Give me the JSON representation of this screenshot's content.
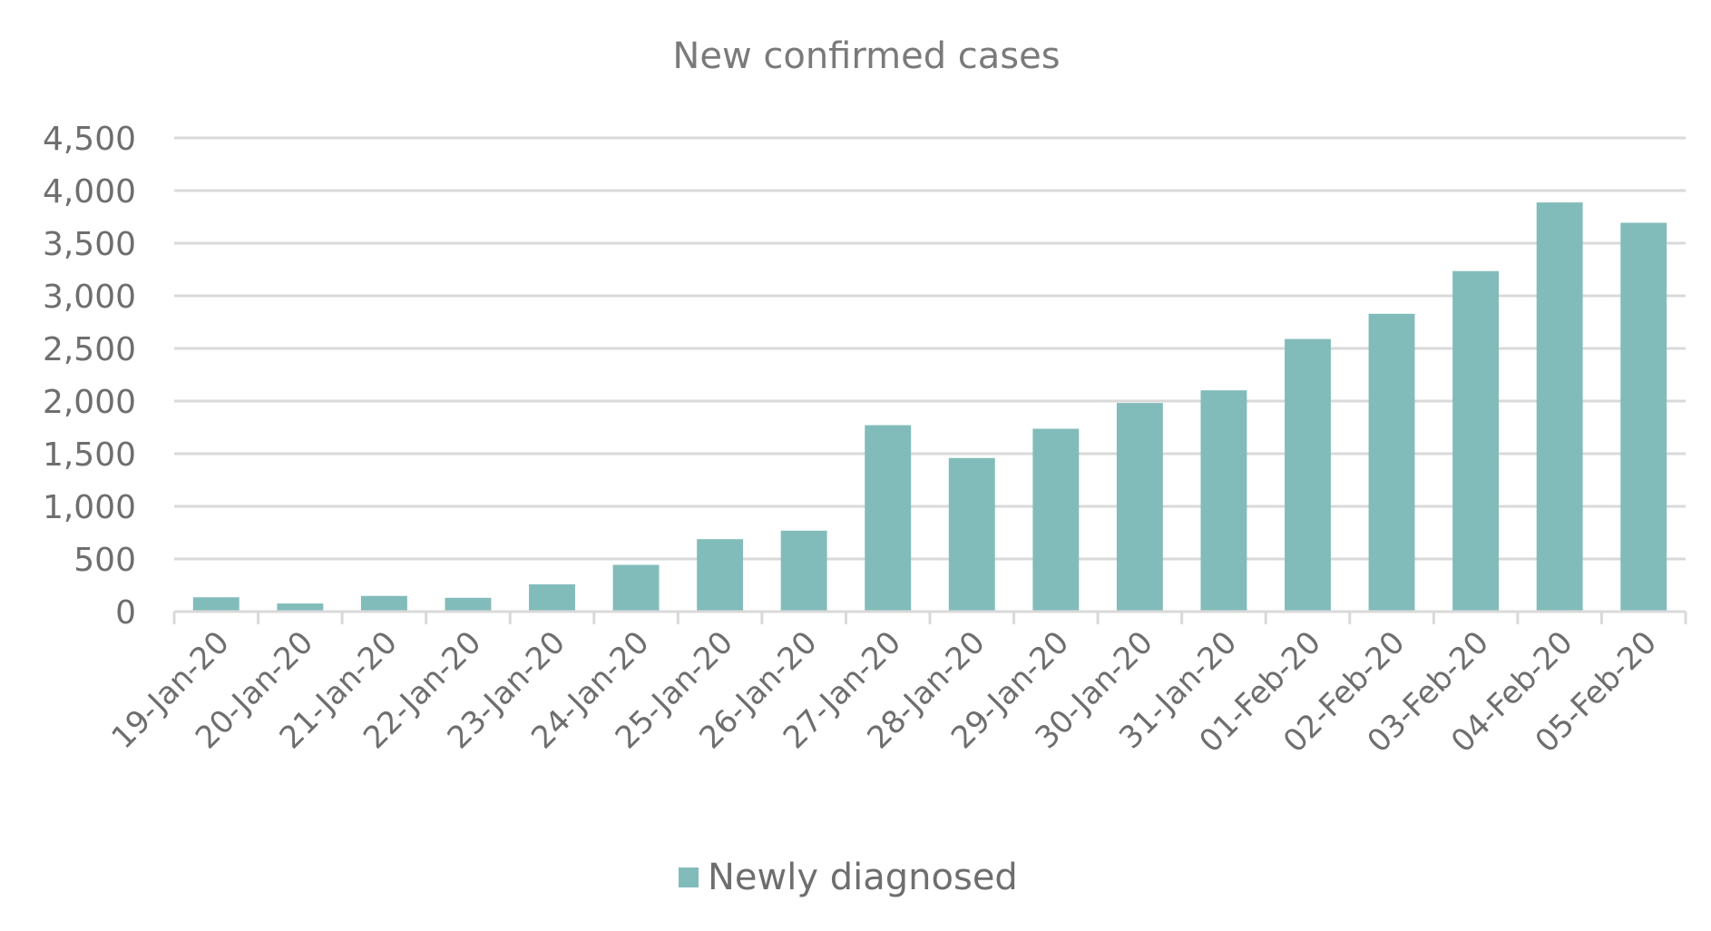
{
  "chart_data": {
    "type": "bar",
    "title": "New confirmed cases",
    "categories": [
      "19-Jan-20",
      "20-Jan-20",
      "21-Jan-20",
      "22-Jan-20",
      "23-Jan-20",
      "24-Jan-20",
      "25-Jan-20",
      "26-Jan-20",
      "27-Jan-20",
      "28-Jan-20",
      "29-Jan-20",
      "30-Jan-20",
      "31-Jan-20",
      "01-Feb-20",
      "02-Feb-20",
      "03-Feb-20",
      "04-Feb-20",
      "05-Feb-20"
    ],
    "series": [
      {
        "name": "Newly diagnosed",
        "color": "#82bcba",
        "values": [
          136,
          77,
          149,
          131,
          259,
          444,
          688,
          769,
          1771,
          1459,
          1737,
          1982,
          2102,
          2590,
          2829,
          3235,
          3887,
          3694
        ]
      }
    ],
    "yticks": [
      "0",
      "500",
      "1,000",
      "1,500",
      "2,000",
      "2,500",
      "3,000",
      "3,500",
      "4,000",
      "4,500"
    ],
    "ylim": [
      0,
      4500
    ],
    "xlabel": "",
    "ylabel": "",
    "grid": true,
    "legend_position": "bottom"
  }
}
